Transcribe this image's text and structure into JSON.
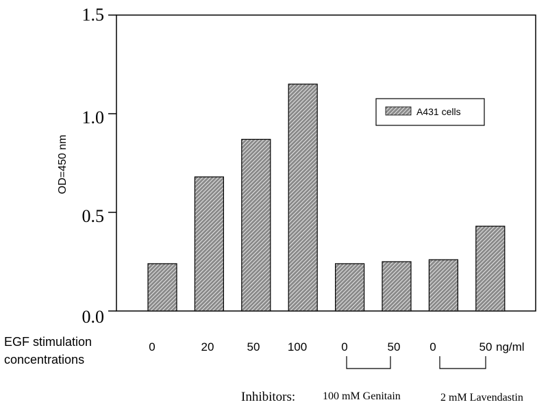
{
  "chart_data": {
    "type": "bar",
    "categories": [
      "0",
      "20",
      "50",
      "100",
      "0",
      "50",
      "0",
      "50"
    ],
    "series": [
      {
        "name": "A431 cells",
        "values": [
          0.24,
          0.68,
          0.87,
          1.15,
          0.24,
          0.25,
          0.26,
          0.43
        ]
      }
    ],
    "ylabel": "OD=450 nm",
    "ylim": [
      0,
      1.5
    ],
    "yticks": [
      "0.0",
      "0.5",
      "1.0",
      "1.5"
    ],
    "ytick_values": [
      0,
      0.5,
      1.0,
      1.5
    ],
    "legend_position": "top-right",
    "grid": false,
    "bar_color": "#8a8a8a",
    "x_row_label_line1": "EGF stimulation",
    "x_row_label_line2": "concentrations",
    "unit_suffix": "ng/ml",
    "inhibitors_label": "Inhibitors:",
    "inhibitor_groups": [
      "100 mM Genitain",
      "2 mM Lavendastin"
    ]
  }
}
